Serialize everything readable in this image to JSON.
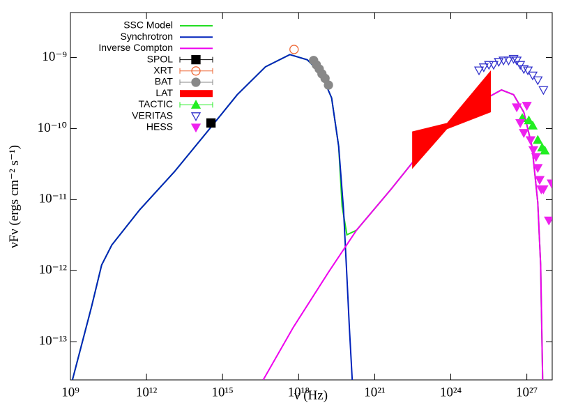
{
  "chart_data": {
    "type": "line",
    "log_x": true,
    "log_y": true,
    "x_label": "ν (Hz)",
    "y_label": "νFν (ergs cm⁻² s⁻¹)",
    "xlim": [
      1000000000.0,
      1e+28
    ],
    "ylim": [
      2.9e-14,
      4.3e-09
    ],
    "xticks": [
      {
        "value": 1000000000.0,
        "label": "10⁹"
      },
      {
        "value": 1000000000000.0,
        "label": "10¹²"
      },
      {
        "value": 1000000000000000.0,
        "label": "10¹⁵"
      },
      {
        "value": 1e+18,
        "label": "10¹⁸"
      },
      {
        "value": 1e+21,
        "label": "10²¹"
      },
      {
        "value": 1e+24,
        "label": "10²⁴"
      },
      {
        "value": 1e+27,
        "label": "10²⁷"
      }
    ],
    "yticks": [
      {
        "value": 1e-13,
        "label": "10⁻¹³"
      },
      {
        "value": 1e-12,
        "label": "10⁻¹²"
      },
      {
        "value": 1e-11,
        "label": "10⁻¹¹"
      },
      {
        "value": 1e-10,
        "label": "10⁻¹⁰"
      },
      {
        "value": 1e-09,
        "label": "10⁻⁹"
      }
    ],
    "legend": "top-left",
    "series": [
      {
        "name": "SSC Model",
        "color": "#22dd22",
        "style": "line",
        "x": [
          1200000000.0,
          6800000000.0,
          17000000000.0,
          43000000000.0,
          540000000000.0,
          13000000000000.0,
          300000000000000.0,
          3800000000000000.0,
          4.9e+16,
          4.5e+17,
          2.2e+18,
          7.8e+18,
          2e+19,
          3.8e+19,
          5.2e+19,
          8e+19,
          1.9e+20,
          4.4e+21,
          1e+23,
          2.5e+24,
          3.2e+25,
          1e+26,
          3e+26,
          7.6e+26,
          1.6e+27,
          2.7e+27,
          3.5e+27,
          4.2e+27
        ],
        "values": [
          2.9e-14,
          3.1e-13,
          1.2e-12,
          2.3e-12,
          7.2e-12,
          2.5e-11,
          9.8e-11,
          3e-10,
          7.4e-10,
          1.1e-09,
          9.3e-10,
          5.9e-10,
          2.7e-10,
          5.6e-11,
          8e-12,
          3.2e-12,
          3.7e-12,
          1.4e-11,
          5.6e-11,
          1.5e-10,
          2.8e-10,
          3.5e-10,
          3e-10,
          1.7e-10,
          5.6e-11,
          9.1e-12,
          1.2e-12,
          2.9e-14
        ]
      },
      {
        "name": "Synchrotron",
        "color": "#0022bb",
        "style": "line",
        "x": [
          1200000000.0,
          6800000000.0,
          17000000000.0,
          43000000000.0,
          540000000000.0,
          13000000000000.0,
          300000000000000.0,
          3800000000000000.0,
          4.9e+16,
          4.5e+17,
          2.2e+18,
          7.8e+18,
          2e+19,
          3.8e+19,
          5.9e+19,
          8.1e+19,
          1e+20,
          1.3e+20
        ],
        "values": [
          2.9e-14,
          3.1e-13,
          1.2e-12,
          2.3e-12,
          7.2e-12,
          2.5e-11,
          9.8e-11,
          3e-10,
          7.4e-10,
          1.1e-09,
          9.3e-10,
          5.9e-10,
          2.7e-10,
          5.6e-11,
          7.2e-12,
          7.6e-13,
          1.6e-13,
          2.9e-14
        ]
      },
      {
        "name": "Inverse Compton",
        "color": "#ee00ee",
        "style": "line",
        "x": [
          4e+16,
          6.2e+17,
          1.5e+19,
          1.9e+20,
          4.4e+21,
          1e+23,
          2.5e+24,
          3.2e+25,
          1e+26,
          3e+26,
          7.6e+26,
          1.6e+27,
          2.7e+27,
          3.5e+27,
          4.2e+27
        ],
        "values": [
          2.9e-14,
          1.6e-13,
          9.5e-13,
          3.7e-12,
          1.4e-11,
          5.6e-11,
          1.5e-10,
          2.8e-10,
          3.5e-10,
          3e-10,
          1.7e-10,
          5.6e-11,
          9.1e-12,
          1.2e-12,
          2.9e-14
        ]
      },
      {
        "name": "SPOL",
        "color": "#000000",
        "style": "points",
        "marker": "square",
        "x": [
          350000000000000.0
        ],
        "values": [
          1.2e-10
        ]
      },
      {
        "name": "XRT",
        "color": "#ee6633",
        "style": "points",
        "marker": "circle-open",
        "x": [
          6.6e+17
        ],
        "values": [
          1.3e-09
        ]
      },
      {
        "name": "BAT",
        "color": "#888888",
        "style": "points",
        "marker": "circle",
        "x": [
          3.9e+18,
          5e+18,
          6.5e+18,
          8.3e+18,
          1.1e+19,
          1.5e+19
        ],
        "values": [
          9.1e-10,
          7.9e-10,
          6.9e-10,
          5.9e-10,
          5.1e-10,
          4.1e-10
        ]
      },
      {
        "name": "LAT",
        "color": "#ff0000",
        "style": "band",
        "x": [
          3e+22,
          7.1e+23,
          3.8e+25
        ],
        "values": [
          9.1e-11,
          1.2e-10,
          6.6e-10
        ],
        "lower": [
          2.7e-11,
          9.8e-11,
          1.7e-10
        ]
      },
      {
        "name": "TACTIC",
        "color": "#22ee22",
        "style": "points",
        "marker": "triangle-up",
        "x": [
          6.6e+26,
          1.2e+27,
          1.7e+27,
          2.7e+27,
          4e+27,
          5.1e+27
        ],
        "values": [
          1.4e-10,
          1.3e-10,
          1.1e-10,
          6.9e-11,
          5.4e-11,
          4.9e-11
        ]
      },
      {
        "name": "VERITAS",
        "color": "#3333cc",
        "style": "points",
        "marker": "triangle-down-open",
        "x": [
          1.3e+25,
          2e+25,
          3.2e+25,
          4.9e+25,
          7.8e+25,
          1.2e+26,
          1.9e+26,
          3e+26,
          4e+26,
          5.5e+26,
          7.6e+26,
          1.1e+27,
          1.7e+27,
          2.7e+27,
          4.5e+27
        ],
        "values": [
          6.6e-10,
          7.3e-10,
          7.9e-10,
          7.9e-10,
          8.7e-10,
          9.1e-10,
          9.1e-10,
          9.6e-10,
          9.1e-10,
          7.9e-10,
          6.9e-10,
          6.6e-10,
          5.6e-10,
          4.8e-10,
          3.5e-10
        ]
      },
      {
        "name": "HESS",
        "color": "#ee22ee",
        "style": "points",
        "marker": "triangle-down",
        "x": [
          4e+26,
          1e+27,
          5.5e+26,
          7.6e+26,
          1.4e+27,
          1.8e+27,
          2.3e+27,
          2.7e+27,
          3.2e+27,
          3.7e+27,
          4.5e+27,
          9.5e+27,
          7.4e+27
        ],
        "values": [
          2e-10,
          2.1e-10,
          1.2e-10,
          8.7e-11,
          6.9e-11,
          5e-11,
          4e-11,
          2.8e-11,
          1.9e-11,
          1.4e-11,
          1.4e-11,
          1.7e-11,
          5.1e-12
        ]
      }
    ]
  }
}
